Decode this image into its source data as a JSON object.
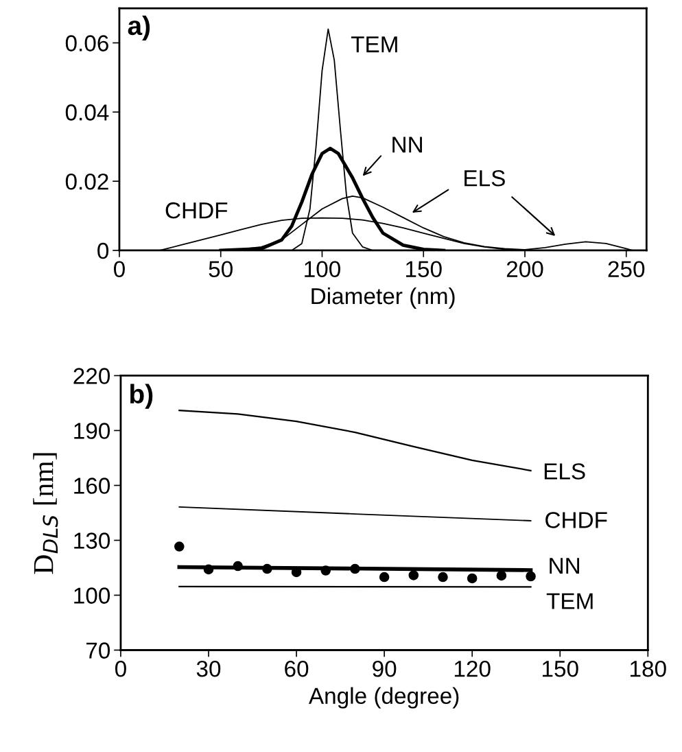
{
  "chart_data": [
    {
      "type": "line",
      "xlabel": "Diameter (nm)",
      "annotations": [
        "a)"
      ],
      "xlim": [
        0,
        260
      ],
      "xticks": [
        0,
        50,
        100,
        150,
        200,
        250
      ],
      "ylim": [
        0,
        0.07
      ],
      "yticks": [
        {
          "value": 0,
          "label": "0"
        },
        {
          "value": 0.02,
          "label": "0.02"
        },
        {
          "value": 0.04,
          "label": "0.04"
        },
        {
          "value": 0.06,
          "label": "0.06"
        }
      ],
      "grid": false,
      "legend": false,
      "marker": "none",
      "line_style": "solid",
      "series": [
        {
          "name": "TEM",
          "color": "#000000",
          "x": [
            85,
            90,
            94,
            97,
            100,
            103,
            106,
            109,
            112,
            115,
            120,
            125
          ],
          "values": [
            0,
            0.002,
            0.012,
            0.03,
            0.052,
            0.064,
            0.055,
            0.035,
            0.016,
            0.005,
            0.001,
            0
          ]
        },
        {
          "name": "NN",
          "color": "#000000",
          "x": [
            50,
            70,
            80,
            85,
            90,
            95,
            100,
            104,
            108,
            115,
            120,
            125,
            130,
            140,
            150,
            160
          ],
          "values": [
            0,
            0.0005,
            0.003,
            0.007,
            0.014,
            0.022,
            0.028,
            0.0295,
            0.028,
            0.021,
            0.015,
            0.0095,
            0.005,
            0.0015,
            0.0003,
            0
          ]
        },
        {
          "name": "ELS",
          "color": "#000000",
          "x": [
            55,
            70,
            80,
            90,
            100,
            110,
            115,
            120,
            130,
            140,
            150,
            160,
            170,
            180,
            190,
            200,
            210,
            220,
            230,
            240,
            250,
            253
          ],
          "values": [
            0,
            0.001,
            0.003,
            0.0075,
            0.012,
            0.015,
            0.0157,
            0.0152,
            0.0125,
            0.0095,
            0.0065,
            0.004,
            0.0022,
            0.0011,
            0.0005,
            0.0002,
            0.0008,
            0.0018,
            0.0025,
            0.002,
            0.0005,
            0
          ]
        },
        {
          "name": "CHDF",
          "color": "#000000",
          "x": [
            20,
            30,
            40,
            50,
            60,
            70,
            80,
            90,
            100,
            110,
            120,
            130,
            140,
            150,
            160,
            170,
            180,
            190,
            200
          ],
          "values": [
            0,
            0.0015,
            0.003,
            0.0045,
            0.006,
            0.0075,
            0.0087,
            0.0093,
            0.0094,
            0.0093,
            0.0088,
            0.0078,
            0.0065,
            0.005,
            0.0035,
            0.002,
            0.001,
            0.0003,
            0
          ]
        }
      ]
    },
    {
      "type": "line",
      "xlabel": "Angle (degree)",
      "ylabel": "D$_{DLS}$ [nm]",
      "annotations": [
        "b)"
      ],
      "xlim": [
        0,
        180
      ],
      "xticks": [
        0,
        30,
        60,
        90,
        120,
        150,
        180
      ],
      "ylim": [
        70,
        220
      ],
      "yticks": [
        70,
        100,
        130,
        160,
        190,
        220
      ],
      "grid": false,
      "legend": false,
      "marker": "none",
      "line_style": "solid",
      "series": [
        {
          "name": "ELS",
          "color": "#000000",
          "x": [
            20,
            40,
            60,
            80,
            100,
            120,
            140
          ],
          "values": [
            201,
            199,
            195,
            189,
            181.2,
            173.7,
            168.1
          ]
        },
        {
          "name": "CHDF",
          "color": "#000000",
          "x": [
            20,
            80,
            140
          ],
          "values": [
            148.2,
            144.4,
            140.7
          ]
        },
        {
          "name": "NN",
          "color": "#000000",
          "x": [
            20,
            140
          ],
          "values": [
            115.4,
            113.7
          ]
        },
        {
          "name": "TEM",
          "color": "#000000",
          "x": [
            20,
            140
          ],
          "values": [
            104.7,
            104.5
          ]
        },
        {
          "type": "scatter",
          "marker": "circle",
          "color": "#000000",
          "x": [
            20,
            30,
            40,
            50,
            60,
            70,
            80,
            90,
            100,
            110,
            120,
            130,
            140
          ],
          "values": [
            126.6,
            114.1,
            115.9,
            114.4,
            112.6,
            113.5,
            114.4,
            109.9,
            110.9,
            109.9,
            109.2,
            110.7,
            110.3
          ]
        }
      ]
    }
  ]
}
